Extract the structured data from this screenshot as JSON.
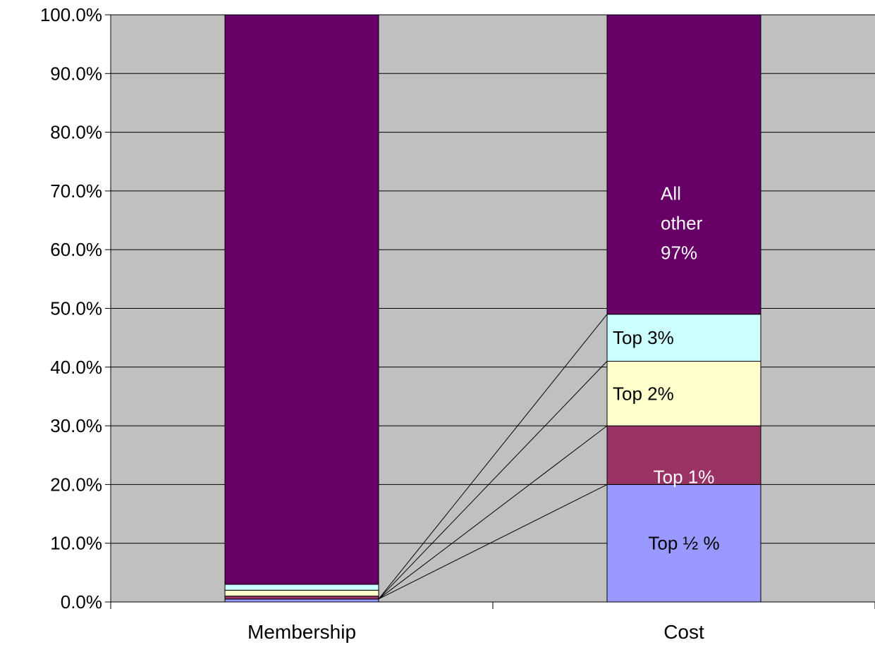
{
  "chart_data": {
    "type": "bar",
    "stacked": true,
    "categories": [
      "Membership",
      "Cost"
    ],
    "ylim": [
      0,
      100
    ],
    "y_ticks": [
      "0.0%",
      "10.0%",
      "20.0%",
      "30.0%",
      "40.0%",
      "50.0%",
      "60.0%",
      "70.0%",
      "80.0%",
      "90.0%",
      "100.0%"
    ],
    "grid": true,
    "series": [
      {
        "key": "top_half",
        "color": "#9999ff",
        "values": [
          0.5,
          20
        ]
      },
      {
        "key": "top_1",
        "color": "#993366",
        "values": [
          0.5,
          10
        ]
      },
      {
        "key": "top_2",
        "color": "#ffffcc",
        "values": [
          1.0,
          11
        ]
      },
      {
        "key": "top_3",
        "color": "#ccffff",
        "values": [
          1.0,
          8
        ]
      },
      {
        "key": "all_other",
        "color": "#660066",
        "values": [
          97.0,
          51
        ]
      }
    ],
    "segment_labels": {
      "top_half": "Top ½ %",
      "top_1": "Top 1%",
      "top_2": "Top 2%",
      "top_3": "Top 3%",
      "all_other": [
        "All",
        "other",
        "97%"
      ]
    },
    "colors": {
      "plot_bg": "#c0c0c0",
      "bar_stroke": "#000000"
    }
  }
}
